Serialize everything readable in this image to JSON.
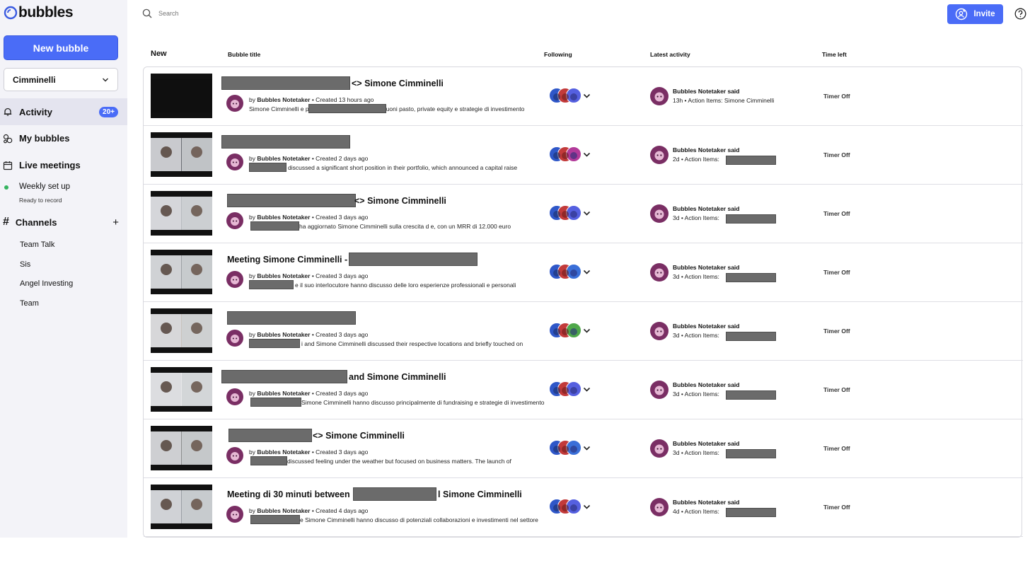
{
  "app": {
    "name": "bubbles"
  },
  "sidebar": {
    "new_bubble_label": "New bubble",
    "workspace": "Cimminelli",
    "nav": {
      "activity": "Activity",
      "activity_badge": "20+",
      "my_bubbles": "My bubbles",
      "live_meetings": "Live meetings"
    },
    "weekly": {
      "title": "Weekly set up",
      "subtitle": "Ready to record"
    },
    "channels_label": "Channels",
    "channels": [
      "Team Talk",
      "Sis",
      "Angel Investing",
      "Team"
    ]
  },
  "header": {
    "search_placeholder": "Search",
    "invite_label": "Invite"
  },
  "columns": {
    "new": "New",
    "title": "Bubble title",
    "following": "Following",
    "latest": "Latest activity",
    "time_left": "Time left"
  },
  "colors": {
    "accent": "#4a6cf7",
    "active_nav": "#e4e4ef",
    "status_dot": "#35b35f",
    "avatar": "#7a2e64"
  },
  "rows": [
    {
      "title": "<> Simone Cimminelli",
      "by_prefix": "by",
      "author": "Bubbles Notetaker",
      "created": "• Created 13 hours ago",
      "summary": "Simone Cimminelli e p discusso principalmente di buoni pasto, private equity e strategie di investimento",
      "activity_who": "Bubbles Notetaker said",
      "activity_line": "13h • Action Items: Simone Cimminelli",
      "timer": "Timer Off"
    },
    {
      "title": "",
      "by_prefix": "by",
      "author": "Bubbles Notetaker",
      "created": "• Created 2 days ago",
      "summary": "discussed a significant short position in their portfolio, which announced a capital raise",
      "activity_who": "Bubbles Notetaker said",
      "activity_line": "2d • Action Items:",
      "timer": "Timer Off"
    },
    {
      "title": "<> Simone Cimminelli",
      "by_prefix": "by",
      "author": "Bubbles Notetaker",
      "created": "• Created 3 days ago",
      "summary": "ha aggiornato Simone Cimminelli sulla crescita d e, con un MRR di 12.000 euro",
      "activity_who": "Bubbles Notetaker said",
      "activity_line": "3d • Action Items:",
      "timer": "Timer Off"
    },
    {
      "title": "Meeting Simone Cimminelli -",
      "by_prefix": "by",
      "author": "Bubbles Notetaker",
      "created": "• Created 3 days ago",
      "summary": "e il suo interlocutore hanno discusso delle loro esperienze professionali e personali",
      "activity_who": "Bubbles Notetaker said",
      "activity_line": "3d • Action Items:",
      "timer": "Timer Off"
    },
    {
      "title": "",
      "by_prefix": "by",
      "author": "Bubbles Notetaker",
      "created": "• Created 3 days ago",
      "summary": "i and Simone Cimminelli discussed their respective locations and briefly touched on",
      "activity_who": "Bubbles Notetaker said",
      "activity_line": "3d • Action Items:",
      "timer": "Timer Off"
    },
    {
      "title": "and Simone Cimminelli",
      "by_prefix": "by",
      "author": "Bubbles Notetaker",
      "created": "• Created 3 days ago",
      "summary": "Simone Cimminelli hanno discusso principalmente di fundraising e strategie di investimento",
      "activity_who": "Bubbles Notetaker said",
      "activity_line": "3d • Action Items:",
      "timer": "Timer Off"
    },
    {
      "title": "<> Simone Cimminelli",
      "by_prefix": "by",
      "author": "Bubbles Notetaker",
      "created": "• Created 3 days ago",
      "summary": "discussed feeling under the weather but focused on business matters. The launch of",
      "activity_who": "Bubbles Notetaker said",
      "activity_line": "3d • Action Items:",
      "timer": "Timer Off"
    },
    {
      "title": "Meeting di 30 minuti between",
      "title_suffix": "l Simone Cimminelli",
      "by_prefix": "by",
      "author": "Bubbles Notetaker",
      "created": "• Created 4 days ago",
      "summary": "e Simone Cimminelli hanno discusso di potenziali collaborazioni e investimenti nel settore",
      "activity_who": "Bubbles Notetaker said",
      "activity_line": "4d • Action Items:",
      "timer": "Timer Off"
    }
  ]
}
